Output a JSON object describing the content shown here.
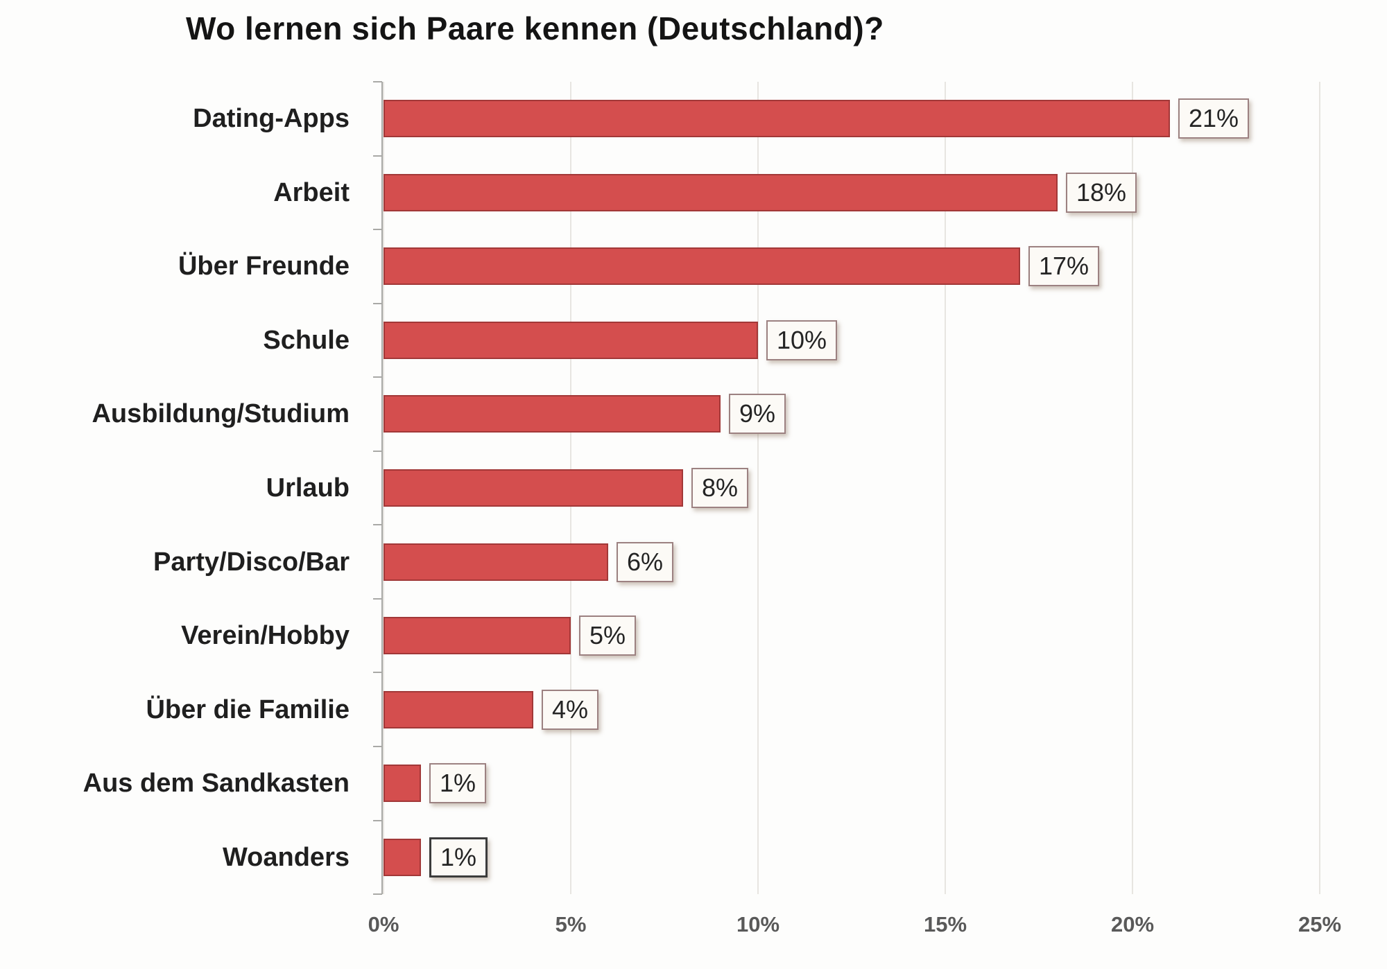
{
  "chart_data": {
    "type": "bar",
    "orientation": "horizontal",
    "title": "Wo lernen sich Paare kennen (Deutschland)?",
    "categories": [
      "Dating-Apps",
      "Arbeit",
      "Über Freunde",
      "Schule",
      "Ausbildung/Studium",
      "Urlaub",
      "Party/Disco/Bar",
      "Verein/Hobby",
      "Über die Familie",
      "Aus dem Sandkasten",
      "Woanders"
    ],
    "values": [
      21,
      18,
      17,
      10,
      9,
      8,
      6,
      5,
      4,
      1,
      1
    ],
    "value_labels": [
      "21%",
      "18%",
      "17%",
      "10%",
      "9%",
      "8%",
      "6%",
      "5%",
      "4%",
      "1%",
      "1%"
    ],
    "x_ticks": [
      "0%",
      "5%",
      "10%",
      "15%",
      "20%",
      "25%"
    ],
    "x_tick_values": [
      0,
      5,
      10,
      15,
      20,
      25
    ],
    "xlim": [
      0,
      25
    ],
    "xlabel": "",
    "ylabel": "",
    "grid": "vertical",
    "legend": "none",
    "dark_label_index": 10,
    "colors": {
      "bar_fill": "#D44E4E",
      "bar_border": "#A23838",
      "value_box_bg": "#FCFAF6",
      "value_box_border": "#9C8181",
      "value_box_border_dark": "#3C3C3C",
      "value_box_shadow": "rgba(130,105,80,0.4)",
      "axis_line": "#A9A9A6",
      "gridline": "#E7E5E1",
      "title_color": "#141414",
      "category_label_color": "#1F1F1F",
      "x_tick_label_color": "#595959",
      "value_label_color": "#242424",
      "background": "#FDFDFC"
    }
  }
}
